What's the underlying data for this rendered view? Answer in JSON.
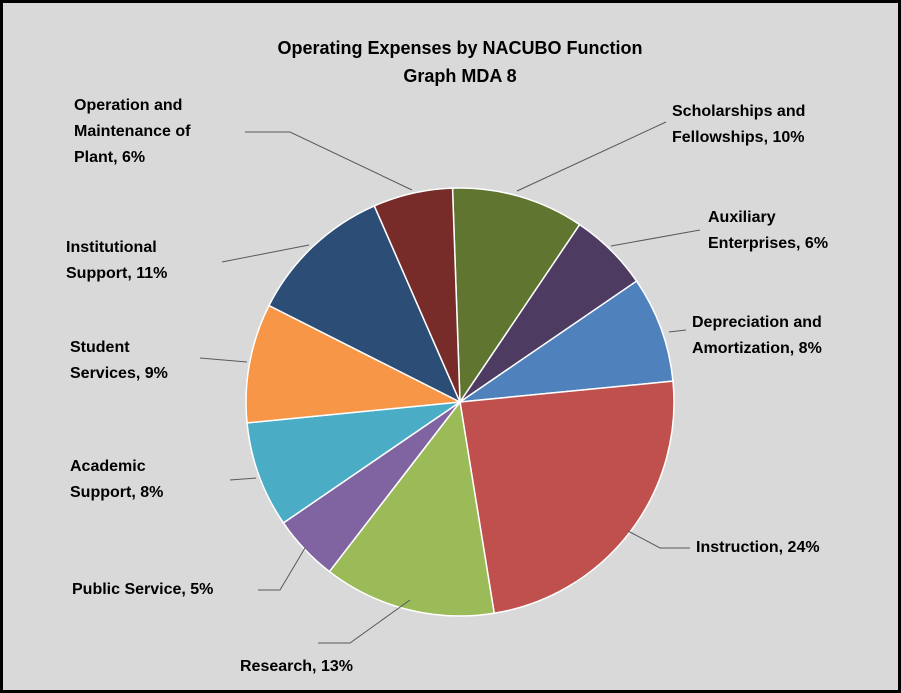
{
  "chart_data": {
    "type": "pie",
    "title": "Operating Expenses by  NACUBO Function",
    "subtitle": "Graph MDA 8",
    "labels": [
      [
        "Scholarships and",
        "Fellowships, 10%"
      ],
      [
        "Auxiliary",
        "Enterprises, 6%"
      ],
      [
        "Depreciation and",
        "Amortization, 8%"
      ],
      [
        "Instruction, 24%"
      ],
      [
        "Research, 13%"
      ],
      [
        "Public Service, 5%"
      ],
      [
        "Academic",
        "Support, 8%"
      ],
      [
        "Student",
        "Services, 9%"
      ],
      [
        "Institutional",
        "Support, 11%"
      ],
      [
        "Operation and",
        "Maintenance of",
        "Plant, 6%"
      ]
    ],
    "values": [
      10,
      6,
      8,
      24,
      13,
      5,
      8,
      9,
      11,
      6
    ],
    "colors": [
      "#5f7530",
      "#4e3b62",
      "#4f81bd",
      "#c0504d",
      "#9bbb59",
      "#8064a2",
      "#4bacc6",
      "#f79646",
      "#2c4d75",
      "#772c2a"
    ]
  }
}
